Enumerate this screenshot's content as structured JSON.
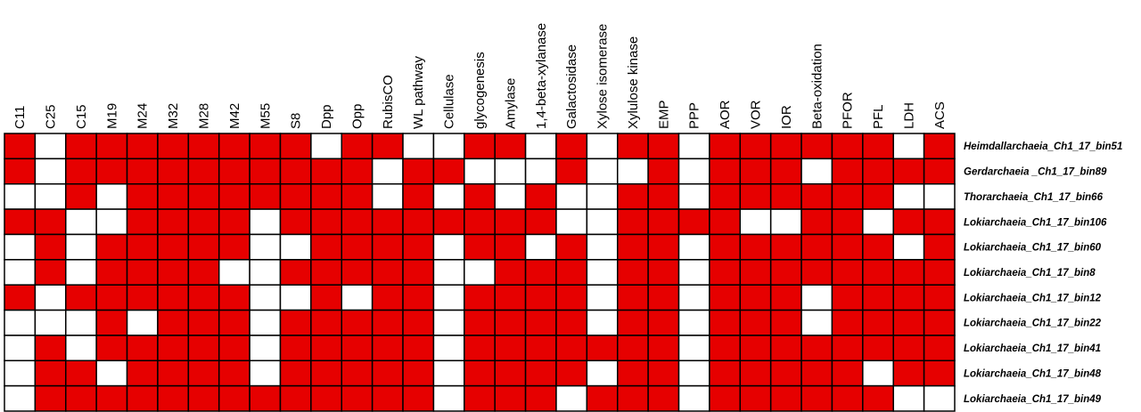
{
  "chart_data": {
    "type": "heatmap",
    "categories": [
      "C11",
      "C25",
      "C15",
      "M19",
      "M24",
      "M32",
      "M28",
      "M42",
      "M55",
      "S8",
      "Dpp",
      "Opp",
      "RubisCO",
      "WL pathway",
      "Cellulase",
      "glycogenesis",
      "Amylase",
      "1,4-beta-xylanase",
      "Galactosidase",
      "Xylose isomerase",
      "Xylulose kinase",
      "EMP",
      "PPP",
      "AOR",
      "VOR",
      "IOR",
      "Beta-oxidation",
      "PFOR",
      "PFL",
      "LDH",
      "ACS"
    ],
    "rows": [
      "Heimdallarchaeia_Ch1_17_bin51",
      "Gerdarchaeia _Ch1_17_bin89",
      "Thorarchaeia_Ch1_17_bin66",
      "Lokiarchaeia_Ch1_17_bin106",
      "Lokiarchaeia_Ch1_17_bin60",
      "Lokiarchaeia_Ch1_17_bin8",
      "Lokiarchaeia_Ch1_17_bin12",
      "Lokiarchaeia_Ch1_17_bin22",
      "Lokiarchaeia_Ch1_17_bin41",
      "Lokiarchaeia_Ch1_17_bin48",
      "Lokiarchaeia_Ch1_17_bin49"
    ],
    "values": [
      [
        1,
        0,
        1,
        1,
        1,
        1,
        1,
        1,
        1,
        1,
        0,
        1,
        1,
        0,
        0,
        1,
        1,
        0,
        1,
        0,
        1,
        1,
        0,
        1,
        1,
        1,
        1,
        1,
        1,
        0,
        1
      ],
      [
        1,
        0,
        1,
        1,
        1,
        1,
        1,
        1,
        1,
        1,
        1,
        1,
        0,
        1,
        1,
        0,
        0,
        0,
        1,
        0,
        0,
        1,
        0,
        1,
        1,
        1,
        0,
        1,
        1,
        1,
        1
      ],
      [
        0,
        0,
        1,
        0,
        1,
        1,
        1,
        1,
        1,
        1,
        1,
        1,
        0,
        1,
        0,
        1,
        0,
        1,
        0,
        0,
        1,
        1,
        0,
        1,
        1,
        1,
        1,
        1,
        1,
        0,
        0
      ],
      [
        1,
        1,
        0,
        0,
        1,
        1,
        1,
        1,
        0,
        1,
        1,
        1,
        1,
        1,
        1,
        1,
        1,
        1,
        0,
        0,
        1,
        1,
        1,
        1,
        0,
        0,
        1,
        1,
        0,
        1,
        1
      ],
      [
        0,
        1,
        0,
        1,
        1,
        1,
        1,
        1,
        0,
        0,
        1,
        1,
        1,
        1,
        0,
        1,
        1,
        0,
        1,
        0,
        1,
        1,
        0,
        1,
        1,
        1,
        1,
        1,
        1,
        0,
        1
      ],
      [
        0,
        1,
        0,
        1,
        1,
        1,
        1,
        0,
        0,
        1,
        1,
        1,
        1,
        1,
        0,
        0,
        1,
        1,
        1,
        0,
        1,
        1,
        0,
        1,
        1,
        1,
        1,
        1,
        1,
        1,
        1
      ],
      [
        1,
        0,
        1,
        1,
        1,
        1,
        1,
        1,
        0,
        0,
        1,
        0,
        1,
        1,
        0,
        1,
        1,
        1,
        1,
        0,
        1,
        1,
        0,
        1,
        1,
        1,
        0,
        1,
        1,
        1,
        1
      ],
      [
        0,
        0,
        0,
        1,
        0,
        1,
        1,
        1,
        0,
        1,
        1,
        1,
        1,
        1,
        0,
        1,
        1,
        1,
        1,
        0,
        1,
        1,
        0,
        1,
        1,
        1,
        0,
        1,
        1,
        1,
        1
      ],
      [
        0,
        1,
        0,
        1,
        1,
        1,
        1,
        1,
        0,
        1,
        1,
        1,
        1,
        1,
        0,
        1,
        1,
        1,
        1,
        1,
        1,
        1,
        0,
        1,
        1,
        1,
        1,
        1,
        1,
        1,
        1
      ],
      [
        0,
        1,
        1,
        0,
        1,
        1,
        1,
        1,
        0,
        1,
        1,
        1,
        1,
        1,
        0,
        1,
        1,
        1,
        1,
        0,
        1,
        1,
        0,
        1,
        1,
        1,
        1,
        1,
        0,
        1,
        1
      ],
      [
        0,
        1,
        1,
        1,
        1,
        1,
        1,
        1,
        1,
        1,
        1,
        1,
        1,
        1,
        0,
        1,
        1,
        1,
        0,
        1,
        1,
        1,
        0,
        1,
        1,
        1,
        1,
        1,
        1,
        0,
        0
      ]
    ],
    "color": "#e60000"
  }
}
